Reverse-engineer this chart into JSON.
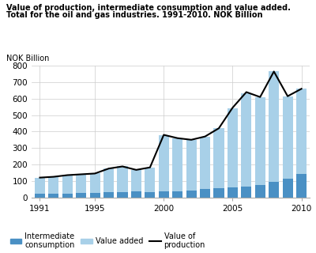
{
  "years": [
    1991,
    1992,
    1993,
    1994,
    1995,
    1996,
    1997,
    1998,
    1999,
    2000,
    2001,
    2002,
    2003,
    2004,
    2005,
    2006,
    2007,
    2008,
    2009,
    2010
  ],
  "intermediate_consumption": [
    20,
    22,
    23,
    25,
    27,
    30,
    33,
    37,
    32,
    35,
    35,
    40,
    50,
    55,
    60,
    65,
    75,
    95,
    115,
    140
  ],
  "value_added": [
    100,
    103,
    112,
    115,
    118,
    145,
    155,
    130,
    150,
    345,
    325,
    310,
    320,
    365,
    480,
    570,
    535,
    670,
    500,
    520
  ],
  "value_of_production": [
    120,
    125,
    135,
    140,
    145,
    175,
    188,
    167,
    182,
    380,
    360,
    350,
    370,
    420,
    545,
    640,
    610,
    765,
    615,
    660
  ],
  "title_line1": "Value of production, intermediate consumption and value added.",
  "title_line2": "Total for the oil and gas industries. 1991-2010. NOK Billion",
  "ylabel": "NOK Billion",
  "ylim": [
    0,
    800
  ],
  "yticks": [
    0,
    100,
    200,
    300,
    400,
    500,
    600,
    700,
    800
  ],
  "color_intermediate": "#4A90C4",
  "color_value_added": "#A8D0E8",
  "color_line": "#000000",
  "legend_labels": [
    "Intermediate\nconsumption",
    "Value added",
    "Value of\nproduction"
  ],
  "grid_color": "#cccccc"
}
